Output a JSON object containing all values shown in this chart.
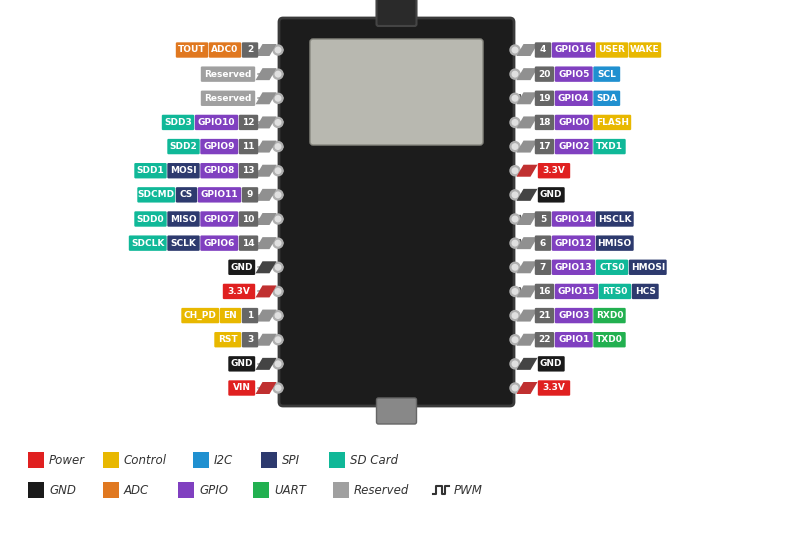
{
  "colors": {
    "power": "#e02020",
    "gnd": "#1a1a1a",
    "control": "#e8b800",
    "adc": "#e07820",
    "i2c": "#2090d0",
    "gpio": "#8040c0",
    "spi": "#2d3a6e",
    "uart": "#22b050",
    "sdcard": "#10b898",
    "reserved": "#a0a0a0"
  },
  "left_pins": [
    {
      "num": "2",
      "pwm": false,
      "labels": [
        {
          "text": "TOUT",
          "color": "#e07820"
        },
        {
          "text": "ADC0",
          "color": "#e07820"
        }
      ]
    },
    {
      "num": "",
      "pwm": false,
      "labels": [
        {
          "text": "Reserved",
          "color": "#a0a0a0"
        }
      ]
    },
    {
      "num": "",
      "pwm": false,
      "labels": [
        {
          "text": "Reserved",
          "color": "#a0a0a0"
        }
      ]
    },
    {
      "num": "12",
      "pwm": false,
      "labels": [
        {
          "text": "SDD3",
          "color": "#10b898"
        },
        {
          "text": "GPIO10",
          "color": "#8040c0"
        }
      ]
    },
    {
      "num": "11",
      "pwm": false,
      "labels": [
        {
          "text": "SDD2",
          "color": "#10b898"
        },
        {
          "text": "GPIO9",
          "color": "#8040c0"
        }
      ]
    },
    {
      "num": "13",
      "pwm": false,
      "labels": [
        {
          "text": "SDD1",
          "color": "#10b898"
        },
        {
          "text": "MOSI",
          "color": "#2d3a6e"
        },
        {
          "text": "GPIO8",
          "color": "#8040c0"
        }
      ]
    },
    {
      "num": "9",
      "pwm": false,
      "labels": [
        {
          "text": "SDCMD",
          "color": "#10b898"
        },
        {
          "text": "CS",
          "color": "#2d3a6e"
        },
        {
          "text": "GPIO11",
          "color": "#8040c0"
        }
      ]
    },
    {
      "num": "10",
      "pwm": false,
      "labels": [
        {
          "text": "SDD0",
          "color": "#10b898"
        },
        {
          "text": "MISO",
          "color": "#2d3a6e"
        },
        {
          "text": "GPIO7",
          "color": "#8040c0"
        }
      ]
    },
    {
      "num": "14",
      "pwm": false,
      "labels": [
        {
          "text": "SDCLK",
          "color": "#10b898"
        },
        {
          "text": "SCLK",
          "color": "#2d3a6e"
        },
        {
          "text": "GPIO6",
          "color": "#8040c0"
        }
      ]
    },
    {
      "num": "",
      "pwm": false,
      "labels": [
        {
          "text": "GND",
          "color": "#1a1a1a"
        }
      ]
    },
    {
      "num": "",
      "pwm": false,
      "labels": [
        {
          "text": "3.3V",
          "color": "#e02020"
        }
      ]
    },
    {
      "num": "1",
      "pwm": false,
      "labels": [
        {
          "text": "CH_PD",
          "color": "#e8b800"
        },
        {
          "text": "EN",
          "color": "#e8b800"
        }
      ]
    },
    {
      "num": "3",
      "pwm": false,
      "labels": [
        {
          "text": "RST",
          "color": "#e8b800"
        }
      ]
    },
    {
      "num": "",
      "pwm": false,
      "labels": [
        {
          "text": "GND",
          "color": "#1a1a1a"
        }
      ]
    },
    {
      "num": "",
      "pwm": false,
      "labels": [
        {
          "text": "VIN",
          "color": "#e02020"
        }
      ]
    }
  ],
  "right_pins": [
    {
      "num": "4",
      "pwm": false,
      "labels": [
        {
          "text": "GPIO16",
          "color": "#8040c0"
        },
        {
          "text": "USER",
          "color": "#e8b800"
        },
        {
          "text": "WAKE",
          "color": "#e8b800"
        }
      ]
    },
    {
      "num": "20",
      "pwm": false,
      "labels": [
        {
          "text": "GPIO5",
          "color": "#8040c0"
        },
        {
          "text": "SCL",
          "color": "#2090d0"
        }
      ]
    },
    {
      "num": "19",
      "pwm": true,
      "labels": [
        {
          "text": "GPIO4",
          "color": "#8040c0"
        },
        {
          "text": "SDA",
          "color": "#2090d0"
        }
      ]
    },
    {
      "num": "18",
      "pwm": false,
      "labels": [
        {
          "text": "GPIO0",
          "color": "#8040c0"
        },
        {
          "text": "FLASH",
          "color": "#e8b800"
        }
      ]
    },
    {
      "num": "17",
      "pwm": false,
      "labels": [
        {
          "text": "GPIO2",
          "color": "#8040c0"
        },
        {
          "text": "TXD1",
          "color": "#10b898"
        }
      ]
    },
    {
      "num": "",
      "pwm": false,
      "labels": [
        {
          "text": "3.3V",
          "color": "#e02020"
        }
      ]
    },
    {
      "num": "",
      "pwm": false,
      "labels": [
        {
          "text": "GND",
          "color": "#1a1a1a"
        }
      ]
    },
    {
      "num": "5",
      "pwm": true,
      "labels": [
        {
          "text": "GPIO14",
          "color": "#8040c0"
        },
        {
          "text": "HSCLK",
          "color": "#2d3a6e"
        }
      ]
    },
    {
      "num": "6",
      "pwm": true,
      "labels": [
        {
          "text": "GPIO12",
          "color": "#8040c0"
        },
        {
          "text": "HMISO",
          "color": "#2d3a6e"
        }
      ]
    },
    {
      "num": "7",
      "pwm": false,
      "labels": [
        {
          "text": "GPIO13",
          "color": "#8040c0"
        },
        {
          "text": "CTS0",
          "color": "#10b898"
        },
        {
          "text": "HMOSI",
          "color": "#2d3a6e"
        }
      ]
    },
    {
      "num": "16",
      "pwm": true,
      "labels": [
        {
          "text": "GPIO15",
          "color": "#8040c0"
        },
        {
          "text": "RTS0",
          "color": "#10b898"
        },
        {
          "text": "HCS",
          "color": "#2d3a6e"
        }
      ]
    },
    {
      "num": "21",
      "pwm": false,
      "labels": [
        {
          "text": "GPIO3",
          "color": "#8040c0"
        },
        {
          "text": "RXD0",
          "color": "#22b050"
        }
      ]
    },
    {
      "num": "22",
      "pwm": false,
      "labels": [
        {
          "text": "GPIO1",
          "color": "#8040c0"
        },
        {
          "text": "TXD0",
          "color": "#22b050"
        }
      ]
    },
    {
      "num": "",
      "pwm": false,
      "labels": [
        {
          "text": "GND",
          "color": "#1a1a1a"
        }
      ]
    },
    {
      "num": "",
      "pwm": false,
      "labels": [
        {
          "text": "3.3V",
          "color": "#e02020"
        }
      ]
    }
  ],
  "legend_row1": [
    {
      "color": "#e02020",
      "label": "Power"
    },
    {
      "color": "#e8b800",
      "label": "Control"
    },
    {
      "color": "#2090d0",
      "label": "I2C"
    },
    {
      "color": "#2d3a6e",
      "label": "SPI"
    },
    {
      "color": "#10b898",
      "label": "SD Card"
    }
  ],
  "legend_row2": [
    {
      "color": "#1a1a1a",
      "label": "GND"
    },
    {
      "color": "#e07820",
      "label": "ADC"
    },
    {
      "color": "#8040c0",
      "label": "GPIO"
    },
    {
      "color": "#22b050",
      "label": "UART"
    },
    {
      "color": "#a0a0a0",
      "label": "Reserved"
    },
    {
      "color": "pwm",
      "label": "PWM"
    }
  ]
}
